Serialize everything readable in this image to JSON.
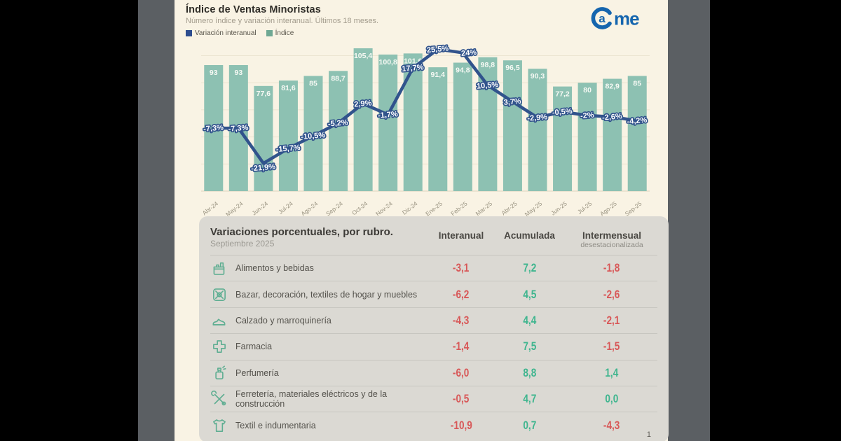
{
  "header": {
    "title": "Índice de Ventas Minoristas",
    "subtitle": "Número índice y variación interanual. Últimos 18 meses.",
    "legend": [
      {
        "label": "Variación interanual",
        "color": "#2e4d8f"
      },
      {
        "label": "Índice",
        "color": "#6fa893"
      }
    ],
    "logo_text": "Came",
    "logo_color": "#1565ae"
  },
  "chart_data": {
    "type": "bar+line",
    "categories": [
      "Abr-24",
      "May-24",
      "Jun-24",
      "Jul-24",
      "Ago-24",
      "Sep-24",
      "Oct-24",
      "Nov-24",
      "Dic-24",
      "Ene-25",
      "Feb-25",
      "Mar-25",
      "Abr-25",
      "May-25",
      "Jun-25",
      "Jul-25",
      "Ago-25",
      "Sep-25"
    ],
    "series": [
      {
        "name": "Índice",
        "type": "bar",
        "color": "#8dc1b2",
        "values": [
          93,
          93,
          77.6,
          81.6,
          85,
          88.7,
          105.4,
          100.8,
          101.6,
          91.4,
          94.8,
          98.8,
          96.5,
          90.3,
          77.2,
          80,
          82.9,
          85
        ],
        "labels": [
          "93",
          "93",
          "77,6",
          "81,6",
          "85",
          "88,7",
          "105,4",
          "100,8",
          "101,6",
          "91,4",
          "94,8",
          "98,8",
          "96,5",
          "90,3",
          "77,2",
          "80",
          "82,9",
          "85"
        ]
      },
      {
        "name": "Variación interanual",
        "type": "line",
        "color": "#31538c",
        "values": [
          -7.3,
          -7.3,
          -21.9,
          -15.7,
          -10.5,
          -5.2,
          2.9,
          -1.7,
          17.7,
          25.5,
          24,
          10.5,
          3.7,
          -2.9,
          -0.5,
          -2,
          -2.6,
          -4.2
        ],
        "labels": [
          "-7,3%",
          "-7,3%",
          "-21,9%",
          "-15,7%",
          "-10,5%",
          "-5,2%",
          "2,9%",
          "-1,7%",
          "17,7%",
          "25,5%",
          "24%",
          "10,5%",
          "3,7%",
          "-2,9%",
          "-0,5%",
          "-2%",
          "-2,6%",
          "-4,2%"
        ]
      }
    ],
    "bar_axis_range": [
      0,
      112
    ],
    "line_axis_range": [
      -30,
      30
    ],
    "grid": "horizontal-faint",
    "legend_position": "top-left",
    "x_labels_rotated": true
  },
  "table": {
    "title": "Variaciones porcentuales, por rubro.",
    "subtitle": "Septiembre 2025",
    "columns": [
      "Interanual",
      "Acumulada",
      "Intermensual"
    ],
    "column_note": "desestacionalizada",
    "positive_color": "#3eb58e",
    "negative_color": "#d85858",
    "icon_color": "#5fae92",
    "rows": [
      {
        "icon": "groceries-icon",
        "label": "Alimentos y bebidas",
        "interanual": "-3,1",
        "acumulada": "7,2",
        "intermensual": "-1,8"
      },
      {
        "icon": "decor-icon",
        "label": "Bazar, decoración, textiles de hogar y muebles",
        "interanual": "-6,2",
        "acumulada": "4,5",
        "intermensual": "-2,6"
      },
      {
        "icon": "shoe-icon",
        "label": "Calzado y marroquinería",
        "interanual": "-4,3",
        "acumulada": "4,4",
        "intermensual": "-2,1"
      },
      {
        "icon": "pharmacy-cross-icon",
        "label": "Farmacia",
        "interanual": "-1,4",
        "acumulada": "7,5",
        "intermensual": "-1,5"
      },
      {
        "icon": "perfume-icon",
        "label": "Perfumería",
        "interanual": "-6,0",
        "acumulada": "8,8",
        "intermensual": "1,4"
      },
      {
        "icon": "tools-icon",
        "label": "Ferretería, materiales eléctricos y de la construcción",
        "interanual": "-0,5",
        "acumulada": "4,7",
        "intermensual": "0,0"
      },
      {
        "icon": "tshirt-icon",
        "label": "Textil e indumentaria",
        "interanual": "-10,9",
        "acumulada": "0,7",
        "intermensual": "-4,3"
      }
    ]
  },
  "page": {
    "number": "1"
  }
}
